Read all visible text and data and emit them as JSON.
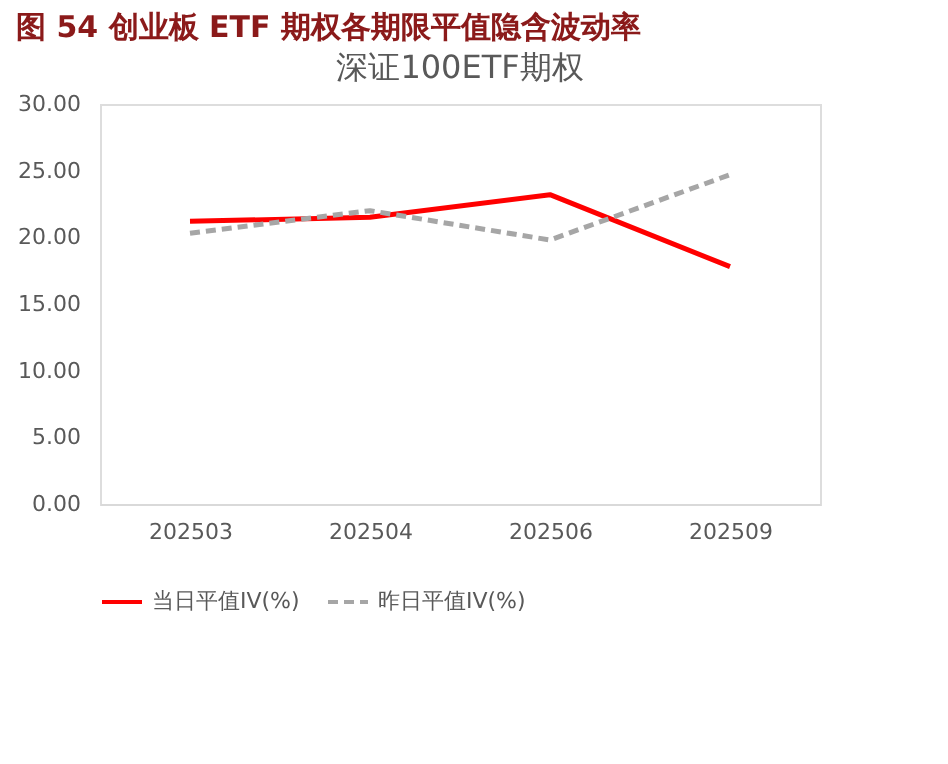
{
  "chart_data": {
    "type": "line",
    "title": "图 54   创业板 ETF 期权各期限平值隐含波动率",
    "subtitle": "深证100ETF期权",
    "categories": [
      "202503",
      "202504",
      "202506",
      "202509"
    ],
    "series": [
      {
        "name": "当日平值IV(%)",
        "color": "#ff0000",
        "line_style": "solid",
        "values": [
          21.2,
          21.5,
          23.2,
          17.8
        ]
      },
      {
        "name": "昨日平值IV(%)",
        "color": "#a6a6a6",
        "line_style": "dashed",
        "values": [
          20.3,
          22.0,
          19.8,
          24.7
        ]
      }
    ],
    "ylim": [
      0,
      30
    ],
    "yticks": [
      {
        "value": 0,
        "label": "0.00"
      },
      {
        "value": 5,
        "label": "5.00"
      },
      {
        "value": 10,
        "label": "10.00"
      },
      {
        "value": 15,
        "label": "15.00"
      },
      {
        "value": 20,
        "label": "20.00"
      },
      {
        "value": 25,
        "label": "25.00"
      },
      {
        "value": 30,
        "label": "30.00"
      }
    ],
    "grid": false,
    "legend": "bottom",
    "marker": "none"
  }
}
